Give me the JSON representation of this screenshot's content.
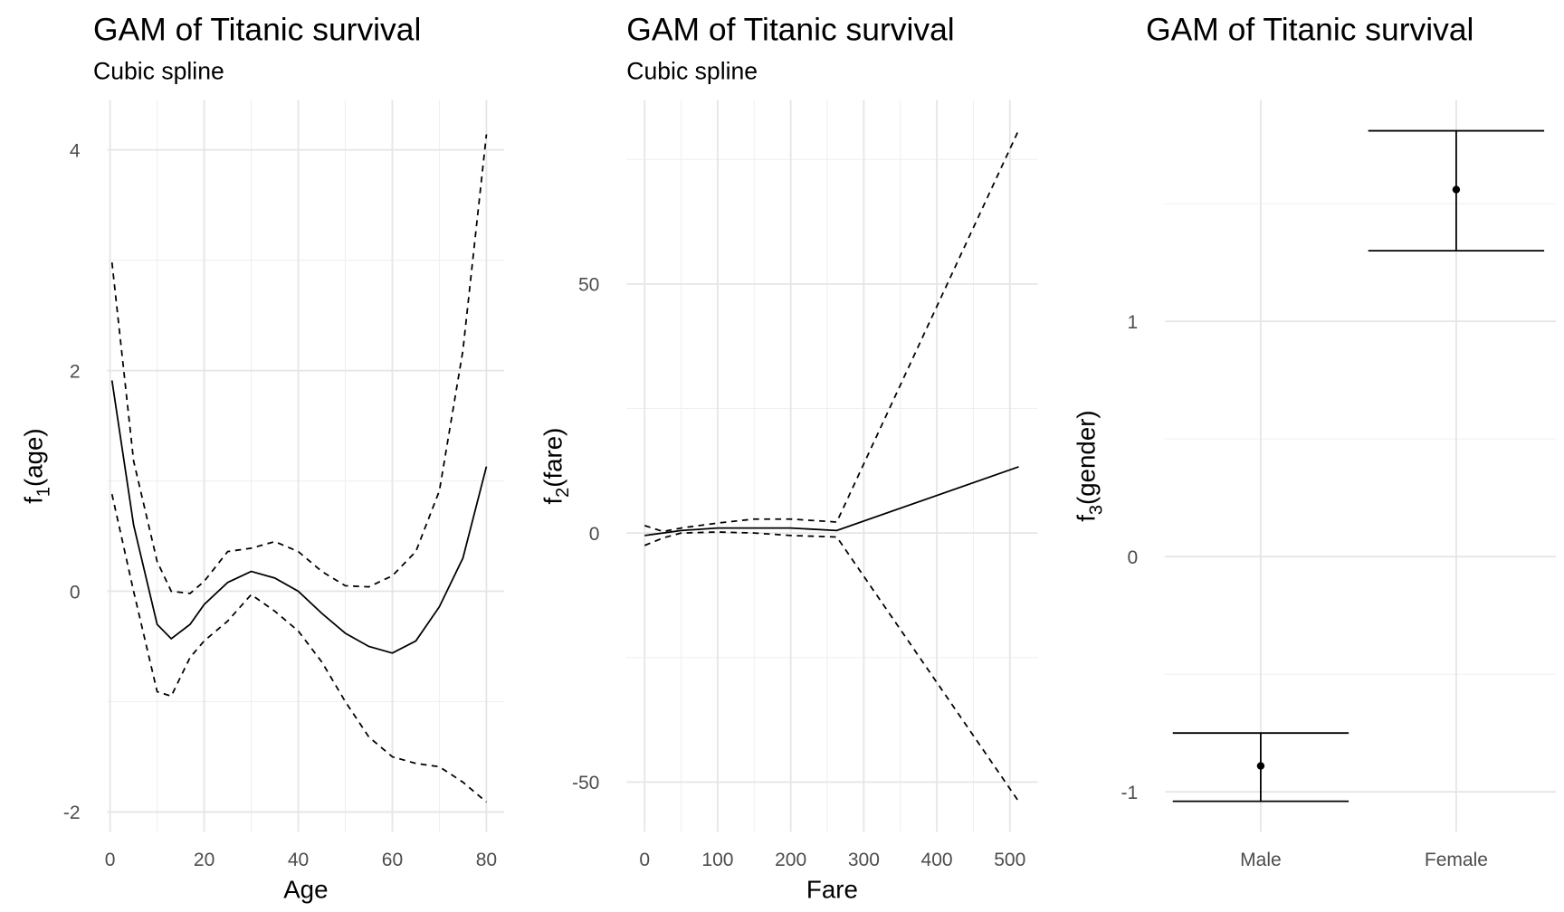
{
  "chart_data": [
    {
      "type": "line",
      "title": "GAM of Titanic survival",
      "subtitle": "Cubic spline",
      "x_label": "Age",
      "y_label": {
        "base": "f",
        "sub": "1",
        "rest": "(age)"
      },
      "x": [
        0.4,
        5,
        10,
        13,
        17,
        20,
        25,
        30,
        35,
        40,
        45,
        50,
        55,
        60,
        65,
        70,
        75,
        80
      ],
      "series": [
        {
          "style": "solid",
          "color": "#000000",
          "values": [
            1.91,
            0.6,
            -0.3,
            -0.43,
            -0.3,
            -0.12,
            0.08,
            0.18,
            0.12,
            0.0,
            -0.2,
            -0.38,
            -0.5,
            -0.56,
            -0.45,
            -0.14,
            0.3,
            1.13
          ]
        },
        {
          "style": "dashed",
          "color": "#000000",
          "values": [
            2.98,
            1.18,
            0.27,
            0.0,
            -0.02,
            0.09,
            0.36,
            0.39,
            0.45,
            0.36,
            0.18,
            0.05,
            0.04,
            0.14,
            0.36,
            0.91,
            2.18,
            4.14
          ]
        },
        {
          "style": "dashed",
          "color": "#000000",
          "values": [
            0.88,
            0.0,
            -0.91,
            -0.95,
            -0.6,
            -0.45,
            -0.27,
            -0.03,
            -0.18,
            -0.36,
            -0.64,
            -1.0,
            -1.32,
            -1.5,
            -1.56,
            -1.59,
            -1.73,
            -1.91
          ]
        }
      ],
      "xlim": [
        -0.6,
        83.8
      ],
      "ylim": [
        -2.18,
        4.45
      ],
      "xticks": [
        0,
        20,
        40,
        60,
        80
      ],
      "yticks": [
        -2,
        0,
        2,
        4
      ],
      "minor_xticks": [
        10,
        30,
        50,
        70
      ],
      "minor_yticks": [
        -1,
        1,
        3
      ],
      "grid": true
    },
    {
      "type": "line",
      "title": "GAM of Titanic survival",
      "subtitle": "Cubic spline",
      "x_label": "Fare",
      "y_label": {
        "base": "f",
        "sub": "2",
        "rest": "(fare)"
      },
      "x": [
        0,
        25,
        50,
        100,
        150,
        200,
        263,
        512
      ],
      "series": [
        {
          "style": "solid",
          "color": "#000000",
          "values": [
            -0.5,
            0,
            0.5,
            1,
            1,
            1,
            0.5,
            13.3
          ]
        },
        {
          "style": "dashed",
          "color": "#000000",
          "values": [
            1.5,
            0.3,
            1,
            2,
            2.8,
            2.8,
            2.2,
            80.9
          ]
        },
        {
          "style": "dashed",
          "color": "#000000",
          "values": [
            -2.5,
            -1,
            0,
            0.2,
            0,
            -0.5,
            -0.8,
            -53.9
          ]
        }
      ],
      "xlim": [
        -24.7,
        538
      ],
      "ylim": [
        -60,
        86.9
      ],
      "xticks": [
        0,
        100,
        200,
        300,
        400,
        500
      ],
      "yticks": [
        -50,
        0,
        50
      ],
      "minor_xticks": [
        50,
        150,
        250,
        350,
        450
      ],
      "minor_yticks": [
        -25,
        25,
        75
      ],
      "grid": true
    },
    {
      "type": "errorbar",
      "title": "GAM of Titanic survival",
      "y_label": {
        "base": "f",
        "sub": "3",
        "rest": "(gender)"
      },
      "categories": [
        "Male",
        "Female"
      ],
      "values": [
        -0.89,
        1.56
      ],
      "lower": [
        -1.04,
        1.3
      ],
      "upper": [
        -0.75,
        1.81
      ],
      "color": "#000000",
      "ylim": [
        -1.17,
        1.94
      ],
      "yticks": [
        -1,
        0,
        1
      ],
      "minor_yticks": [
        -0.5,
        0.5,
        1.5
      ],
      "grid": true
    }
  ]
}
